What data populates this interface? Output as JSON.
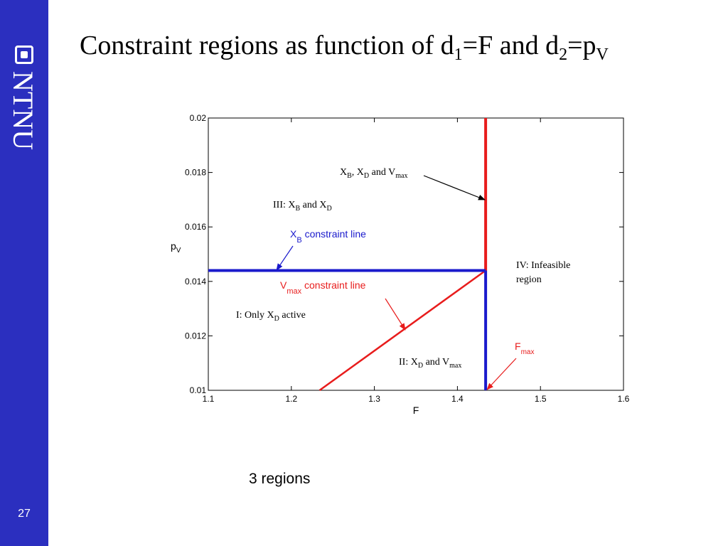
{
  "slide": {
    "page_number": "27",
    "logo_text": "NTNU",
    "title_parts": {
      "pre": "Constraint regions as function of d",
      "sub1": "1",
      "mid": "=F and d",
      "sub2": "2",
      "mid2": "=p",
      "sub3": "V"
    },
    "caption": "3 regions",
    "colors": {
      "sidebar": "#2b2fbf",
      "red_line": "#e81c1c",
      "blue_line": "#1a1acc"
    }
  },
  "chart_data": {
    "type": "line",
    "xlabel": "F",
    "ylabel": {
      "main": "p",
      "sub": "V"
    },
    "xlim": [
      1.1,
      1.6
    ],
    "ylim": [
      0.01,
      0.02
    ],
    "x_ticks": [
      "1.1",
      "1.2",
      "1.3",
      "1.4",
      "1.5",
      "1.6"
    ],
    "y_ticks": [
      "0.01",
      "0.012",
      "0.014",
      "0.016",
      "0.018",
      "0.02"
    ],
    "series": [
      {
        "color": "#e81c1c",
        "points": [
          [
            1.234,
            0.01
          ],
          [
            1.434,
            0.0144
          ]
        ]
      },
      {
        "color": "#e81c1c",
        "points": [
          [
            1.434,
            0.0144
          ],
          [
            1.434,
            0.02
          ]
        ]
      },
      {
        "color": "#1a1acc",
        "points": [
          [
            1.1,
            0.0144
          ],
          [
            1.434,
            0.0144
          ]
        ]
      },
      {
        "color": "#1a1acc",
        "points": [
          [
            1.434,
            0.01
          ],
          [
            1.434,
            0.0144
          ]
        ]
      }
    ],
    "annotations": {
      "region3": {
        "pre": "III: X",
        "s1": "B",
        "mid": " and X",
        "s2": "D"
      },
      "region1": {
        "pre": "I: Only X",
        "s1": "D",
        "post": " active"
      },
      "region2": {
        "pre": "II: X",
        "s1": "D",
        "mid": " and V",
        "s2": "max"
      },
      "region4_line1": "IV: Infeasible",
      "region4_line2": "region",
      "triple": {
        "a": "X",
        "as": "B",
        "b": ", X",
        "bs": "D",
        "c": " and V",
        "cs": "max"
      },
      "xb_label": {
        "main": "X",
        "sub": "B",
        "post": " constraint line"
      },
      "vmax_label": {
        "main": "V",
        "sub": "max",
        "post": " constraint line"
      },
      "fmax_label": {
        "main": "F",
        "sub": "max"
      }
    }
  }
}
